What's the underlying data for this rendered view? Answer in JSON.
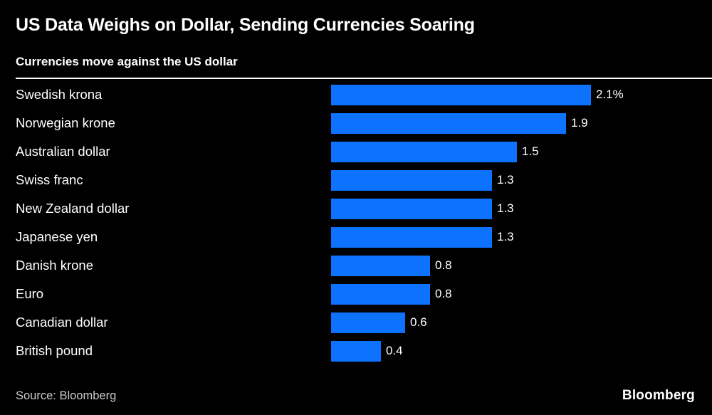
{
  "header": {
    "title": "US Data Weighs on Dollar, Sending Currencies Soaring",
    "subtitle": "Currencies move against the US dollar"
  },
  "chart_data": {
    "type": "bar",
    "orientation": "horizontal",
    "title": "US Data Weighs on Dollar, Sending Currencies Soaring",
    "subtitle": "Currencies move against the US dollar",
    "unit": "%",
    "categories": [
      "Swedish krona",
      "Norwegian krone",
      "Australian dollar",
      "Swiss franc",
      "New Zealand dollar",
      "Japanese yen",
      "Danish krone",
      "Euro",
      "Canadian dollar",
      "British pound"
    ],
    "values": [
      2.1,
      1.9,
      1.5,
      1.3,
      1.3,
      1.3,
      0.8,
      0.8,
      0.6,
      0.4
    ],
    "value_labels": [
      "2.1%",
      "1.9",
      "1.5",
      "1.3",
      "1.3",
      "1.3",
      "0.8",
      "0.8",
      "0.6",
      "0.4"
    ],
    "xlim": [
      0,
      2.1
    ],
    "bar_color": "#0D73FF",
    "grid": false,
    "legend": "none"
  },
  "footer": {
    "source": "Source: Bloomberg",
    "brand": "Bloomberg"
  },
  "colors": {
    "background": "#000000",
    "text": "#FFFFFF",
    "muted_text": "#C9C9C9",
    "bar": "#0D73FF",
    "divider": "#FFFFFF"
  }
}
